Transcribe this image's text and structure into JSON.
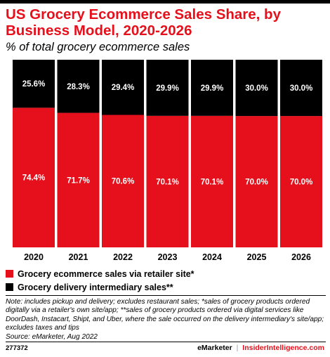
{
  "header": {
    "title": "US Grocery Ecommerce Sales Share, by Business Model, 2020-2026",
    "subtitle": "% of total grocery ecommerce sales"
  },
  "colors": {
    "accent": "#e5101b",
    "black": "#000000",
    "white": "#ffffff"
  },
  "chart_data": {
    "type": "bar",
    "stacked": true,
    "categories": [
      "2020",
      "2021",
      "2022",
      "2023",
      "2024",
      "2025",
      "2026"
    ],
    "series": [
      {
        "name": "Grocery ecommerce sales via retailer site*",
        "color": "#e5101b",
        "values": [
          74.4,
          71.7,
          70.6,
          70.1,
          70.1,
          70.0,
          70.0
        ],
        "labels": [
          "74.4%",
          "71.7%",
          "70.6%",
          "70.1%",
          "70.1%",
          "70.0%",
          "70.0%"
        ]
      },
      {
        "name": "Grocery delivery intermediary sales**",
        "color": "#000000",
        "values": [
          25.6,
          28.3,
          29.4,
          29.9,
          29.9,
          30.0,
          30.0
        ],
        "labels": [
          "25.6%",
          "28.3%",
          "29.4%",
          "29.9%",
          "29.9%",
          "30.0%",
          "30.0%"
        ]
      }
    ],
    "ylim": [
      0,
      100
    ],
    "grid": false,
    "legend_position": "bottom-left"
  },
  "note": "Note: includes pickup and delivery; excludes restaurant sales; *sales of grocery products ordered digitally via a retailer's own site/app; **sales of grocery products ordered via digital services like DoorDash, Instacart, Shipt, and Uber, where the sale occurred on the delivery intermediary's site/app; excludes taxes and tips",
  "source": "Source: eMarketer, Aug 2022",
  "footer": {
    "chart_id": "277372",
    "brand_emarketer": "eMarketer",
    "separator": "|",
    "brand_insider": "InsiderIntelligence.com"
  }
}
